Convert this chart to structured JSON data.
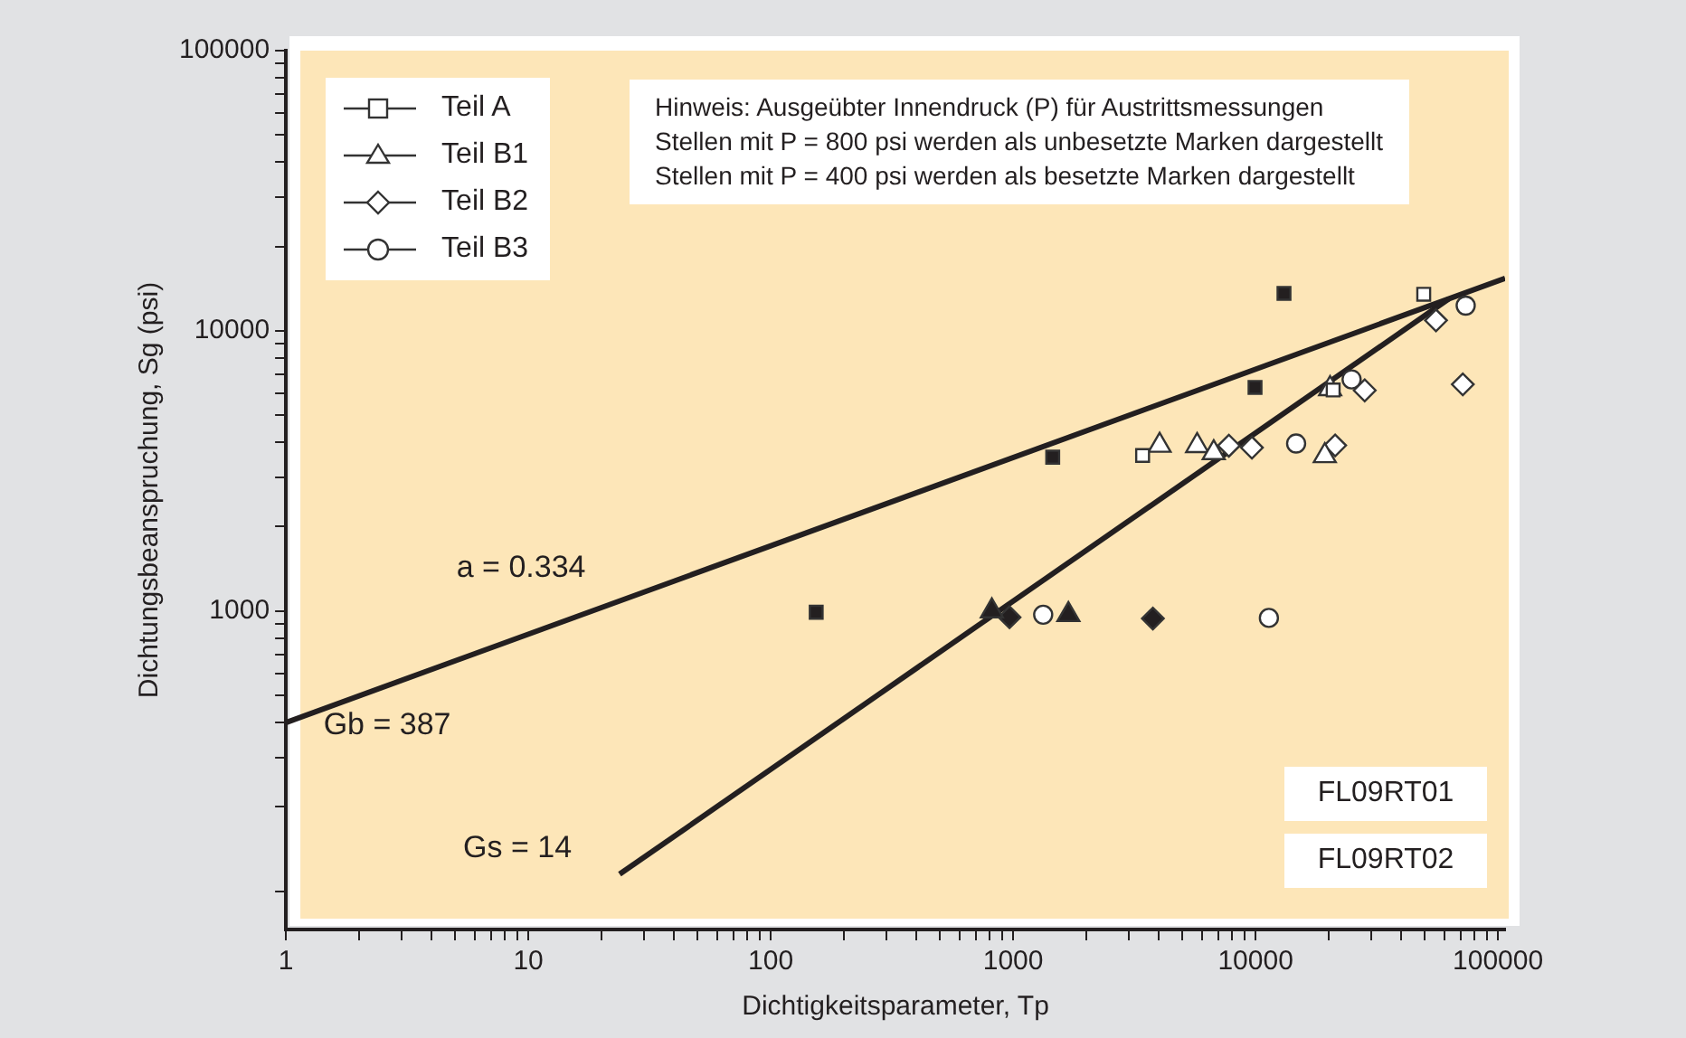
{
  "chart_data": {
    "type": "scatter",
    "xlabel": "Dichtigkeitsparameter, Tp",
    "ylabel": "Dichtungsbeanspruchung, Sg (psi)",
    "xlim": [
      1,
      107000
    ],
    "ylim": [
      73,
      100000
    ],
    "xticks": [
      1,
      {
        "value": 2,
        "label": null
      },
      {
        "value": 3,
        "label": null
      },
      {
        "value": 4,
        "label": null
      },
      {
        "value": 5,
        "label": null
      },
      {
        "value": 6,
        "label": null
      },
      {
        "value": 7,
        "label": null
      },
      {
        "value": 8,
        "label": null
      },
      {
        "value": 9,
        "label": null
      },
      10,
      {
        "value": 20,
        "label": null
      },
      {
        "value": 30,
        "label": null
      },
      {
        "value": 40,
        "label": null
      },
      {
        "value": 50,
        "label": null
      },
      {
        "value": 60,
        "label": null
      },
      {
        "value": 70,
        "label": null
      },
      {
        "value": 80,
        "label": null
      },
      {
        "value": 90,
        "label": null
      },
      100,
      {
        "value": 200,
        "label": null
      },
      {
        "value": 300,
        "label": null
      },
      {
        "value": 400,
        "label": null
      },
      {
        "value": 500,
        "label": null
      },
      {
        "value": 600,
        "label": null
      },
      {
        "value": 700,
        "label": null
      },
      {
        "value": 800,
        "label": null
      },
      {
        "value": 900,
        "label": null
      },
      1000,
      {
        "value": 2000,
        "label": null
      },
      {
        "value": 3000,
        "label": null
      },
      {
        "value": 4000,
        "label": null
      },
      {
        "value": 5000,
        "label": null
      },
      {
        "value": 6000,
        "label": null
      },
      {
        "value": 7000,
        "label": null
      },
      {
        "value": 8000,
        "label": null
      },
      {
        "value": 9000,
        "label": null
      },
      10000,
      {
        "value": 20000,
        "label": null
      },
      {
        "value": 30000,
        "label": null
      },
      {
        "value": 40000,
        "label": null
      },
      {
        "value": 50000,
        "label": null
      },
      {
        "value": 60000,
        "label": null
      },
      {
        "value": 70000,
        "label": null
      },
      {
        "value": 80000,
        "label": null
      },
      {
        "value": 90000,
        "label": null
      },
      100000
    ],
    "yticks": [
      {
        "value": 100,
        "label": null
      },
      {
        "value": 200,
        "label": null
      },
      {
        "value": 300,
        "label": null
      },
      {
        "value": 400,
        "label": null
      },
      {
        "value": 500,
        "label": null
      },
      {
        "value": 600,
        "label": null
      },
      {
        "value": 700,
        "label": null
      },
      {
        "value": 800,
        "label": null
      },
      {
        "value": 900,
        "label": null
      },
      1000,
      {
        "value": 2000,
        "label": null
      },
      {
        "value": 3000,
        "label": null
      },
      {
        "value": 4000,
        "label": null
      },
      {
        "value": 5000,
        "label": null
      },
      {
        "value": 6000,
        "label": null
      },
      {
        "value": 7000,
        "label": null
      },
      {
        "value": 8000,
        "label": null
      },
      {
        "value": 9000,
        "label": null
      },
      10000,
      {
        "value": 20000,
        "label": null
      },
      {
        "value": 30000,
        "label": null
      },
      {
        "value": 40000,
        "label": null
      },
      {
        "value": 50000,
        "label": null
      },
      {
        "value": 60000,
        "label": null
      },
      {
        "value": 70000,
        "label": null
      },
      {
        "value": 80000,
        "label": null
      },
      {
        "value": 90000,
        "label": null
      },
      100000
    ],
    "log": "xy",
    "grid": false,
    "legend": "top left",
    "series": [
      {
        "name": "Teil A",
        "marker": "square",
        "color": "#ffffff",
        "x": [
          49400,
          3420,
          20900
        ],
        "values": [
          13500,
          3590,
          6150
        ]
      },
      {
        "name": "Teil B1",
        "marker": "triangle",
        "color": "#ffffff",
        "x": [
          4020,
          5740,
          6720,
          19300,
          20300
        ],
        "values": [
          3900,
          3890,
          3670,
          3580,
          6210
        ]
      },
      {
        "name": "Teil B2",
        "marker": "diamond",
        "color": "#ffffff",
        "x": [
          7760,
          9660,
          21300,
          28200,
          55500,
          71600
        ],
        "values": [
          3890,
          3830,
          3900,
          6130,
          10900,
          6440
        ]
      },
      {
        "name": "Teil B3",
        "marker": "circle",
        "color": "#ffffff",
        "x": [
          73600,
          24900,
          14700,
          1330,
          11350
        ],
        "values": [
          12300,
          6710,
          3960,
          970,
          945
        ]
      },
      {
        "marker": "square",
        "color": "#231f20",
        "x": [
          13100,
          9950,
          1456,
          154
        ],
        "values": [
          13600,
          6280,
          3540,
          990
        ]
      },
      {
        "marker": "triangle",
        "color": "#231f20",
        "x": [
          817,
          1690
        ],
        "values": [
          1000,
          970
        ]
      },
      {
        "marker": "diamond",
        "color": "#231f20",
        "x": [
          966,
          3770
        ],
        "values": [
          950,
          940
        ]
      },
      {
        "type": "line",
        "marker": "none",
        "color": "#231f20",
        "x": [
          1,
          107000
        ],
        "values": [
          400,
          15400
        ]
      },
      {
        "type": "line",
        "marker": "none",
        "color": "#231f20",
        "x": [
          62700,
          23.8
        ],
        "values": [
          13000,
          115
        ]
      }
    ],
    "annotations": [
      "Hinweis: Ausgeübter Innendruck (P) für Austrittsmessungen\nStellen mit P = 800 psi werden als unbesetzte Marken dargestellt\nStellen mit P = 400 psi werden als besetzte Marken dargestellt",
      "FL09RT01",
      "FL09RT02",
      "a = 0.334",
      "Gb = 387",
      "Gs = 14"
    ]
  }
}
